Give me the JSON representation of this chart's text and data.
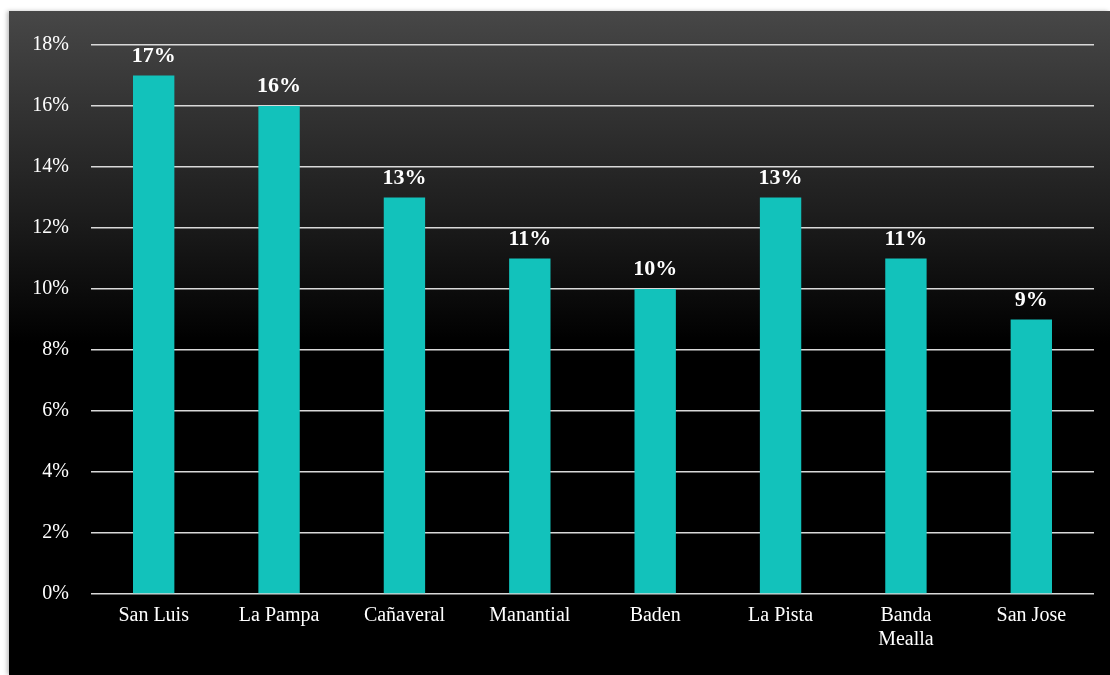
{
  "chart_data": {
    "type": "bar",
    "categories": [
      "San Luis",
      "La Pampa",
      "Cañaveral",
      "Manantial",
      "Baden",
      "La Pista",
      "Banda Mealla",
      "San Jose"
    ],
    "values": [
      17,
      16,
      13,
      11,
      10,
      13,
      11,
      9
    ],
    "value_labels": [
      "17%",
      "16%",
      "13%",
      "11%",
      "10%",
      "13%",
      "11%",
      "9%"
    ],
    "color": "#12c2bb",
    "ylim": [
      0,
      18
    ],
    "yticks": [
      {
        "value": 0,
        "label": "0%"
      },
      {
        "value": 2,
        "label": "2%"
      },
      {
        "value": 4,
        "label": "4%"
      },
      {
        "value": 6,
        "label": "6%"
      },
      {
        "value": 8,
        "label": "8%"
      },
      {
        "value": 10,
        "label": "10%"
      },
      {
        "value": 12,
        "label": "12%"
      },
      {
        "value": 14,
        "label": "14%"
      },
      {
        "value": 16,
        "label": "16%"
      },
      {
        "value": 18,
        "label": "18%"
      }
    ],
    "grid": "y"
  }
}
